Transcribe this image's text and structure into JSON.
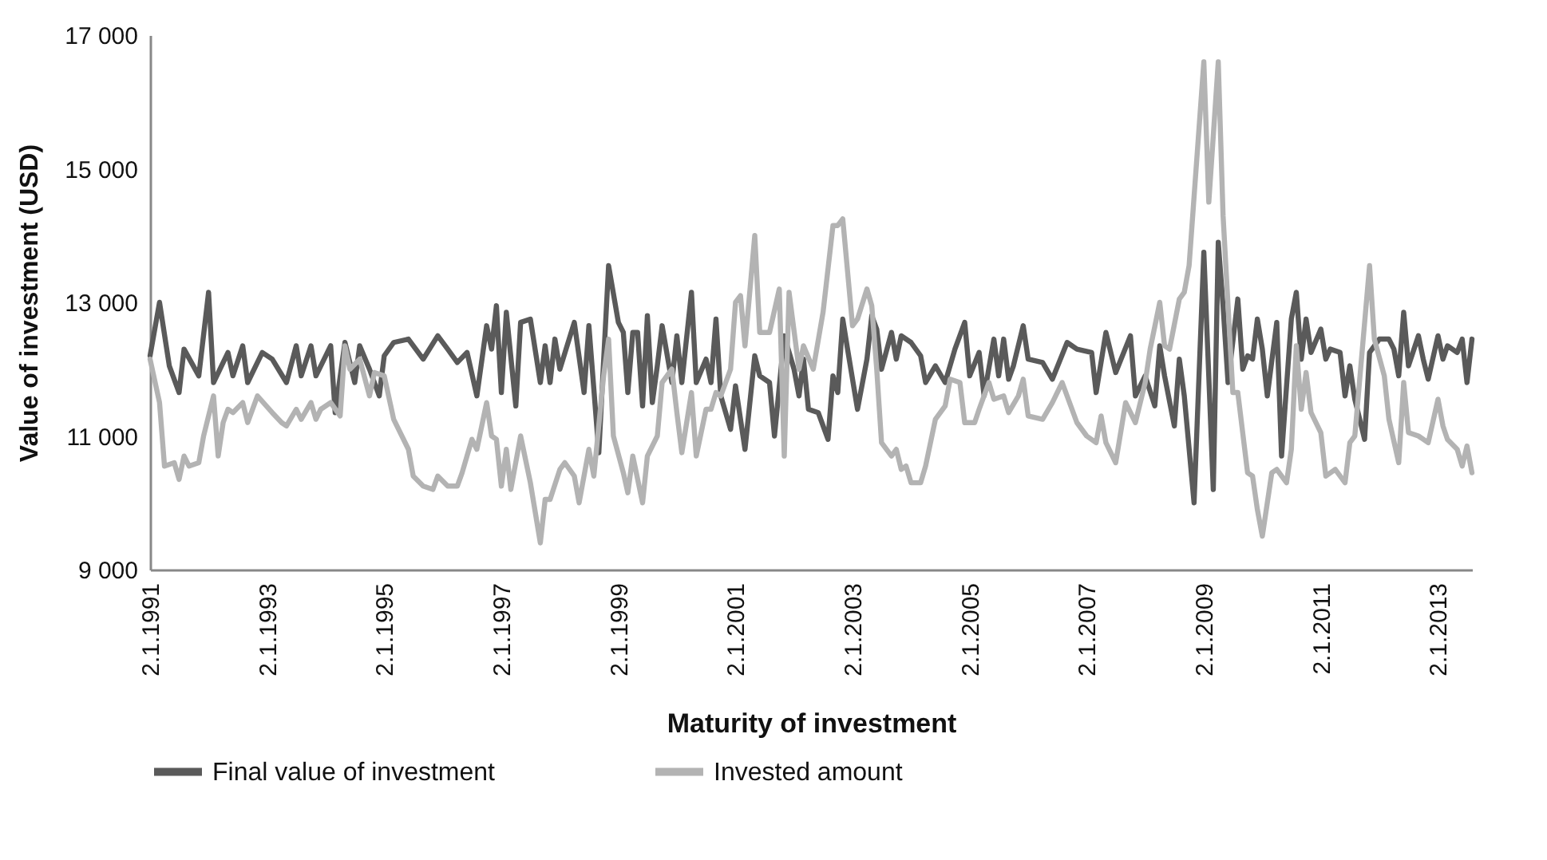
{
  "chart_data": {
    "type": "line",
    "xlabel": "Maturity of investment",
    "ylabel": "Value of investment (USD)",
    "xlim": [
      "1991-01",
      "2013-08"
    ],
    "xticks": [
      {
        "value": "1991-01",
        "label": "2.1.1991"
      },
      {
        "value": "1993-01",
        "label": "2.1.1993"
      },
      {
        "value": "1995-01",
        "label": "2.1.1995"
      },
      {
        "value": "1997-01",
        "label": "2.1.1997"
      },
      {
        "value": "1999-01",
        "label": "2.1.1999"
      },
      {
        "value": "2001-01",
        "label": "2.1.2001"
      },
      {
        "value": "2003-01",
        "label": "2.1.2003"
      },
      {
        "value": "2005-01",
        "label": "2.1.2005"
      },
      {
        "value": "2007-01",
        "label": "2.1.2007"
      },
      {
        "value": "2009-01",
        "label": "2.1.2009"
      },
      {
        "value": "2011-01",
        "label": "2.1.2011"
      },
      {
        "value": "2013-01",
        "label": "2.1.2013"
      }
    ],
    "ylim": [
      9000,
      17000
    ],
    "yticks": [
      {
        "value": 9000,
        "label": "9 000"
      },
      {
        "value": 11000,
        "label": "11 000"
      },
      {
        "value": 13000,
        "label": "13 000"
      },
      {
        "value": 15000,
        "label": "15 000"
      },
      {
        "value": 17000,
        "label": "17 000"
      }
    ],
    "grid": false,
    "legend": "bottom",
    "marker": "none",
    "line_style": "solid",
    "series": [
      {
        "name": "Final value of investment",
        "color": "#5a5a5a",
        "x": [
          "1991-01",
          "1991-03",
          "1991-05",
          "1991-07",
          "1991-08",
          "1991-11",
          "1992-01",
          "1992-02",
          "1992-05",
          "1992-06",
          "1992-08",
          "1992-09",
          "1992-12",
          "1993-02",
          "1993-05",
          "1993-07",
          "1993-08",
          "1993-10",
          "1993-11",
          "1994-02",
          "1994-03",
          "1994-05",
          "1994-07",
          "1994-08",
          "1994-10",
          "1994-12",
          "1995-01",
          "1995-03",
          "1995-06",
          "1995-09",
          "1995-12",
          "1996-02",
          "1996-04",
          "1996-06",
          "1996-08",
          "1996-10",
          "1996-11",
          "1996-12",
          "1997-01",
          "1997-02",
          "1997-04",
          "1997-05",
          "1997-07",
          "1997-09",
          "1997-10",
          "1997-11",
          "1997-12",
          "1998-01",
          "1998-04",
          "1998-06",
          "1998-07",
          "1998-09",
          "1998-11",
          "1999-01",
          "1999-02",
          "1999-03",
          "1999-04",
          "1999-05",
          "1999-06",
          "1999-07",
          "1999-08",
          "1999-09",
          "1999-10",
          "1999-12",
          "2000-01",
          "2000-02",
          "2000-04",
          "2000-05",
          "2000-07",
          "2000-08",
          "2000-09",
          "2000-10",
          "2000-12",
          "2001-01",
          "2001-03",
          "2001-05",
          "2001-06",
          "2001-08",
          "2001-09",
          "2001-11",
          "2002-01",
          "2002-02",
          "2002-03",
          "2002-04",
          "2002-06",
          "2002-08",
          "2002-09",
          "2002-10",
          "2002-11",
          "2002-12",
          "2003-02",
          "2003-04",
          "2003-05",
          "2003-06",
          "2003-07",
          "2003-09",
          "2003-10",
          "2003-11",
          "2004-01",
          "2004-03",
          "2004-04",
          "2004-06",
          "2004-08",
          "2004-10",
          "2004-12",
          "2005-01",
          "2005-03",
          "2005-04",
          "2005-06",
          "2005-07",
          "2005-08",
          "2005-09",
          "2005-10",
          "2005-12",
          "2006-01",
          "2006-04",
          "2006-06",
          "2006-09",
          "2006-11",
          "2007-02",
          "2007-03",
          "2007-05",
          "2007-07",
          "2007-10",
          "2007-11",
          "2008-01",
          "2008-03",
          "2008-04",
          "2008-05",
          "2008-07",
          "2008-08",
          "2008-09",
          "2008-11",
          "2009-01",
          "2009-03",
          "2009-04",
          "2009-05",
          "2009-06",
          "2009-08",
          "2009-09",
          "2009-10",
          "2009-11",
          "2009-12",
          "2010-01",
          "2010-02",
          "2010-04",
          "2010-05",
          "2010-07",
          "2010-08",
          "2010-09",
          "2010-10",
          "2010-11",
          "2011-01",
          "2011-02",
          "2011-03",
          "2011-05",
          "2011-06",
          "2011-07",
          "2011-08",
          "2011-10",
          "2011-11",
          "2012-01",
          "2012-03",
          "2012-04",
          "2012-05",
          "2012-06",
          "2012-07",
          "2012-09",
          "2012-10",
          "2012-11",
          "2013-01",
          "2013-02",
          "2013-03",
          "2013-05",
          "2013-06",
          "2013-07",
          "2013-08"
        ],
        "values": [
          12200,
          13000,
          12050,
          11650,
          12300,
          11900,
          13150,
          11800,
          12250,
          11900,
          12350,
          11800,
          12250,
          12150,
          11800,
          12350,
          11900,
          12350,
          11900,
          12350,
          11350,
          12400,
          11800,
          12350,
          12000,
          11600,
          12200,
          12400,
          12450,
          12150,
          12500,
          12300,
          12100,
          12250,
          11600,
          12650,
          12300,
          12950,
          11650,
          12850,
          11450,
          12700,
          12750,
          11800,
          12350,
          11800,
          12450,
          12000,
          12700,
          11650,
          12650,
          10750,
          13550,
          12700,
          12550,
          11650,
          12550,
          12550,
          11450,
          12800,
          11500,
          12050,
          12650,
          11800,
          12500,
          11800,
          13150,
          11800,
          12150,
          11800,
          12750,
          11600,
          11100,
          11750,
          10800,
          12200,
          11900,
          11800,
          11000,
          12500,
          12000,
          11600,
          12150,
          11400,
          11350,
          10950,
          11900,
          11650,
          12750,
          12300,
          11400,
          12150,
          12800,
          12600,
          12000,
          12550,
          12150,
          12500,
          12400,
          12200,
          11800,
          12050,
          11800,
          12300,
          12700,
          11900,
          12250,
          11600,
          12450,
          11900,
          12450,
          11850,
          12050,
          12650,
          12150,
          12100,
          11850,
          12400,
          12300,
          12250,
          11650,
          12550,
          11950,
          12500,
          11600,
          11900,
          11450,
          12350,
          11900,
          11150,
          12150,
          11600,
          10000,
          13750,
          10200,
          13900,
          12950,
          11800,
          13050,
          12000,
          12200,
          12150,
          12750,
          12300,
          11600,
          12700,
          10700,
          12750,
          13150,
          12150,
          12750,
          12250,
          12600,
          12150,
          12300,
          12250,
          11600,
          12050,
          11550,
          10950,
          12250,
          12450,
          12450,
          12300,
          11900,
          12850,
          12050,
          12500,
          12150,
          11850,
          12500,
          12150,
          12350,
          12250,
          12450,
          11800,
          12450
        ]
      },
      {
        "name": "Invested amount",
        "color": "#b3b3b3",
        "x": [
          "1991-01",
          "1991-03",
          "1991-04",
          "1991-06",
          "1991-07",
          "1991-08",
          "1991-09",
          "1991-11",
          "1991-12",
          "1992-02",
          "1992-03",
          "1992-04",
          "1992-05",
          "1992-06",
          "1992-08",
          "1992-09",
          "1992-11",
          "1993-02",
          "1993-04",
          "1993-05",
          "1993-07",
          "1993-08",
          "1993-10",
          "1993-11",
          "1993-12",
          "1994-02",
          "1994-04",
          "1994-05",
          "1994-06",
          "1994-08",
          "1994-10",
          "1994-11",
          "1995-01",
          "1995-03",
          "1995-06",
          "1995-07",
          "1995-09",
          "1995-11",
          "1995-12",
          "1996-02",
          "1996-04",
          "1996-05",
          "1996-07",
          "1996-08",
          "1996-10",
          "1996-11",
          "1996-12",
          "1997-01",
          "1997-02",
          "1997-03",
          "1997-05",
          "1997-07",
          "1997-09",
          "1997-10",
          "1997-11",
          "1998-01",
          "1998-02",
          "1998-04",
          "1998-05",
          "1998-07",
          "1998-08",
          "1998-10",
          "1998-11",
          "1998-12",
          "1999-02",
          "1999-03",
          "1999-04",
          "1999-06",
          "1999-07",
          "1999-09",
          "1999-10",
          "1999-12",
          "2000-01",
          "2000-02",
          "2000-04",
          "2000-05",
          "2000-07",
          "2000-08",
          "2000-09",
          "2000-10",
          "2000-12",
          "2001-01",
          "2001-02",
          "2001-03",
          "2001-05",
          "2001-06",
          "2001-08",
          "2001-10",
          "2001-11",
          "2001-12",
          "2002-02",
          "2002-03",
          "2002-05",
          "2002-07",
          "2002-09",
          "2002-10",
          "2002-11",
          "2003-01",
          "2003-02",
          "2003-04",
          "2003-05",
          "2003-06",
          "2003-07",
          "2003-09",
          "2003-10",
          "2003-11",
          "2003-12",
          "2004-01",
          "2004-03",
          "2004-04",
          "2004-06",
          "2004-08",
          "2004-09",
          "2004-11",
          "2004-12",
          "2005-02",
          "2005-03",
          "2005-05",
          "2005-06",
          "2005-08",
          "2005-09",
          "2005-11",
          "2005-12",
          "2006-01",
          "2006-04",
          "2006-06",
          "2006-08",
          "2006-11",
          "2007-01",
          "2007-03",
          "2007-04",
          "2007-05",
          "2007-07",
          "2007-09",
          "2007-11",
          "2008-01",
          "2008-02",
          "2008-04",
          "2008-05",
          "2008-06",
          "2008-08",
          "2008-09",
          "2008-10",
          "2009-01",
          "2009-02",
          "2009-04",
          "2009-05",
          "2009-07",
          "2009-08",
          "2009-10",
          "2009-11",
          "2009-12",
          "2010-01",
          "2010-03",
          "2010-04",
          "2010-06",
          "2010-07",
          "2010-08",
          "2010-09",
          "2010-10",
          "2010-11",
          "2011-01",
          "2011-02",
          "2011-04",
          "2011-06",
          "2011-07",
          "2011-08",
          "2011-11",
          "2011-12",
          "2012-02",
          "2012-03",
          "2012-05",
          "2012-06",
          "2012-07",
          "2012-09",
          "2012-11",
          "2013-01",
          "2013-02",
          "2013-03",
          "2013-05",
          "2013-06",
          "2013-07",
          "2013-08"
        ],
        "values": [
          12150,
          11500,
          10550,
          10600,
          10350,
          10700,
          10550,
          10600,
          11000,
          11600,
          10700,
          11200,
          11400,
          11350,
          11500,
          11200,
          11600,
          11350,
          11200,
          11150,
          11400,
          11250,
          11500,
          11250,
          11400,
          11500,
          11300,
          12350,
          12000,
          12150,
          11600,
          11950,
          11900,
          11250,
          10800,
          10400,
          10250,
          10200,
          10400,
          10250,
          10250,
          10450,
          10950,
          10800,
          11500,
          11000,
          10950,
          10250,
          10800,
          10200,
          11000,
          10300,
          9400,
          10050,
          10050,
          10500,
          10600,
          10400,
          10000,
          10800,
          10400,
          11900,
          12450,
          11000,
          10450,
          10150,
          10700,
          10000,
          10700,
          11000,
          11800,
          12000,
          11350,
          10750,
          11650,
          10700,
          11400,
          11400,
          11650,
          11600,
          12000,
          13000,
          13100,
          12350,
          14000,
          12550,
          12550,
          13200,
          10700,
          13150,
          12000,
          12350,
          12000,
          12850,
          14150,
          14150,
          14250,
          12650,
          12750,
          13200,
          12950,
          12000,
          10900,
          10700,
          10800,
          10500,
          10550,
          10300,
          10300,
          10550,
          11250,
          11450,
          11850,
          11800,
          11200,
          11200,
          11400,
          11800,
          11550,
          11600,
          11350,
          11600,
          11850,
          11300,
          11250,
          11500,
          11800,
          11200,
          11000,
          10900,
          11300,
          10900,
          10600,
          11500,
          11200,
          11800,
          12300,
          13000,
          12350,
          12300,
          13050,
          13150,
          13550,
          16600,
          14500,
          16600,
          14300,
          11650,
          11650,
          10450,
          10400,
          9900,
          9500,
          10450,
          10500,
          10300,
          10800,
          12350,
          11400,
          11950,
          11350,
          11050,
          10400,
          10500,
          10300,
          10900,
          11000,
          13550,
          12450,
          11900,
          11250,
          10600,
          11800,
          11050,
          11000,
          10900,
          11550,
          11150,
          10950,
          10800,
          10550,
          10850,
          10450
        ]
      }
    ]
  }
}
